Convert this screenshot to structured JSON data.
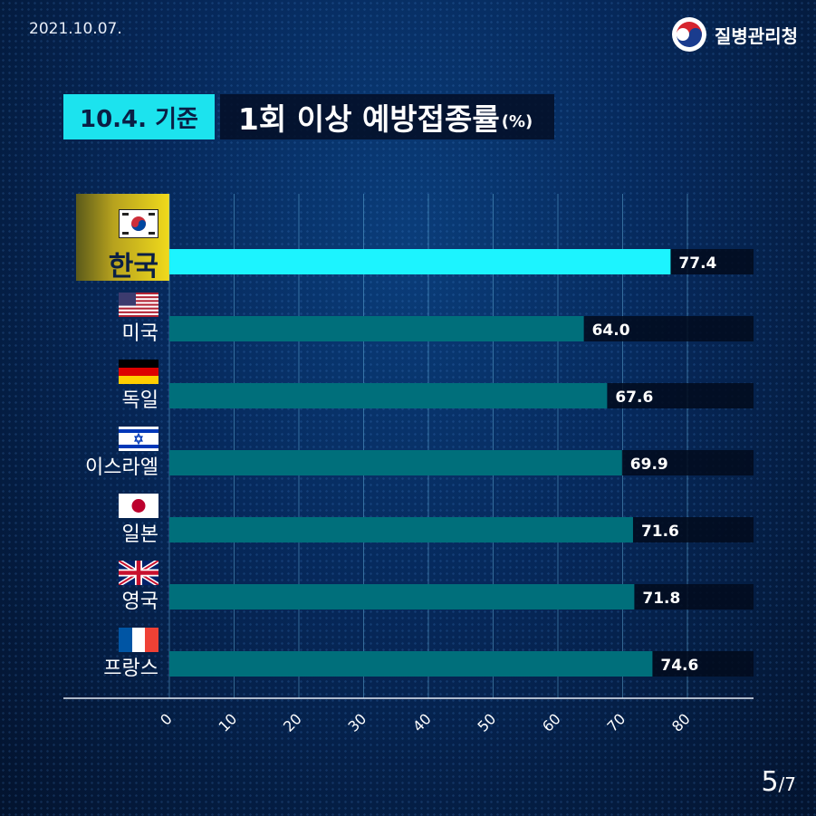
{
  "header": {
    "date": "2021.10.07.",
    "agency": "질병관리청"
  },
  "title": {
    "badge": "10.4. 기준",
    "text": "1회 이상 예방접종률",
    "unit": "(%)"
  },
  "colors": {
    "highlight_bar": "#1cf4ff",
    "normal_bar": "#006f7b",
    "badge": "#1ce3ee",
    "highlight_label_bg": "#f0da1c"
  },
  "chart_data": {
    "type": "bar",
    "orientation": "horizontal",
    "categories": [
      "한국",
      "미국",
      "독일",
      "이스라엘",
      "일본",
      "영국",
      "프랑스"
    ],
    "flags": [
      "korea-flag-icon",
      "usa-flag-icon",
      "germany-flag-icon",
      "israel-flag-icon",
      "japan-flag-icon",
      "uk-flag-icon",
      "france-flag-icon"
    ],
    "values": [
      77.4,
      64.0,
      67.6,
      69.9,
      71.6,
      71.8,
      74.6
    ],
    "value_labels": [
      "77.4",
      "64.0",
      "67.6",
      "69.9",
      "71.6",
      "71.8",
      "74.6"
    ],
    "highlight": "한국",
    "xticks": [
      "0",
      "10",
      "20",
      "30",
      "40",
      "50",
      "60",
      "70",
      "80"
    ],
    "xlim": [
      0,
      90
    ],
    "grid": true,
    "xlabel": "",
    "ylabel": ""
  },
  "pagination": {
    "current": "5",
    "total": "/7"
  }
}
